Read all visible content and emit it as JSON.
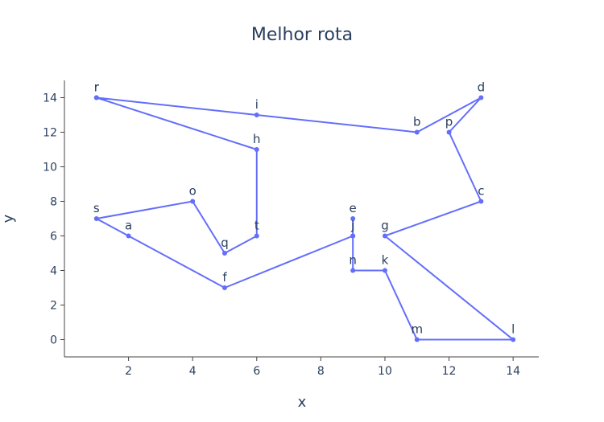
{
  "chart_data": {
    "type": "line",
    "title": "Melhor rota",
    "xlabel": "x",
    "ylabel": "y",
    "xlim": [
      0,
      14.8
    ],
    "ylim": [
      -1,
      15
    ],
    "x_ticks": [
      2,
      4,
      6,
      8,
      10,
      12,
      14
    ],
    "y_ticks": [
      0,
      2,
      4,
      6,
      8,
      10,
      12,
      14
    ],
    "grid": false,
    "legend": "none",
    "color": "#636efa",
    "points": [
      {
        "label": "r",
        "x": 1,
        "y": 14
      },
      {
        "label": "i",
        "x": 6,
        "y": 13
      },
      {
        "label": "b",
        "x": 11,
        "y": 12
      },
      {
        "label": "d",
        "x": 13,
        "y": 14
      },
      {
        "label": "p",
        "x": 12,
        "y": 12
      },
      {
        "label": "c",
        "x": 13,
        "y": 8
      },
      {
        "label": "g",
        "x": 10,
        "y": 6
      },
      {
        "label": "l",
        "x": 14,
        "y": 0
      },
      {
        "label": "m",
        "x": 11,
        "y": 0
      },
      {
        "label": "k",
        "x": 10,
        "y": 4
      },
      {
        "label": "n",
        "x": 9,
        "y": 4
      },
      {
        "label": "j",
        "x": 9,
        "y": 6
      },
      {
        "label": "e",
        "x": 9,
        "y": 7
      },
      {
        "label": "j",
        "x": 9,
        "y": 6
      },
      {
        "label": "f",
        "x": 5,
        "y": 3
      },
      {
        "label": "a",
        "x": 2,
        "y": 6
      },
      {
        "label": "s",
        "x": 1,
        "y": 7
      },
      {
        "label": "o",
        "x": 4,
        "y": 8
      },
      {
        "label": "q",
        "x": 5,
        "y": 5
      },
      {
        "label": "t",
        "x": 6,
        "y": 6
      },
      {
        "label": "h",
        "x": 6,
        "y": 11
      },
      {
        "label": "r",
        "x": 1,
        "y": 14
      }
    ]
  }
}
